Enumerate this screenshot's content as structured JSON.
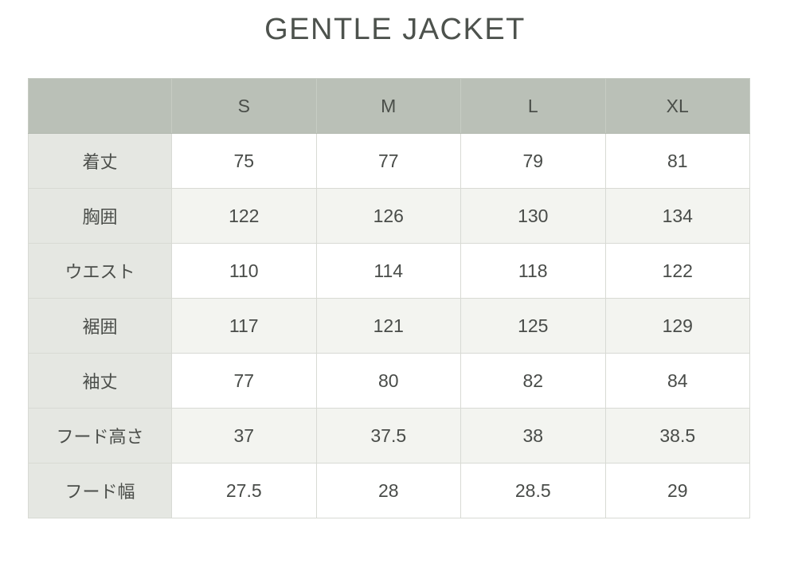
{
  "page": {
    "title": "GENTLE JACKET"
  },
  "chart_data": {
    "type": "table",
    "title": "GENTLE JACKET",
    "columns": [
      "S",
      "M",
      "L",
      "XL"
    ],
    "rows": [
      {
        "label": "着丈",
        "values": [
          "75",
          "77",
          "79",
          "81"
        ]
      },
      {
        "label": "胸囲",
        "values": [
          "122",
          "126",
          "130",
          "134"
        ]
      },
      {
        "label": "ウエスト",
        "values": [
          "110",
          "114",
          "118",
          "122"
        ]
      },
      {
        "label": "裾囲",
        "values": [
          "117",
          "121",
          "125",
          "129"
        ]
      },
      {
        "label": "袖丈",
        "values": [
          "77",
          "80",
          "82",
          "84"
        ]
      },
      {
        "label": "フード高さ",
        "values": [
          "37",
          "37.5",
          "38",
          "38.5"
        ]
      },
      {
        "label": "フード幅",
        "values": [
          "27.5",
          "28",
          "28.5",
          "29"
        ]
      }
    ],
    "layout": {
      "header_position": "top",
      "label_column_position": "left",
      "grid": true
    },
    "colors": {
      "header_bg": "#bac0b7",
      "label_column_bg": "#e5e7e2",
      "alt_row_bg": "#f3f4f0",
      "row_bg": "#ffffff",
      "border": "#d8dad4",
      "text": "#494c49",
      "title_text": "#4d524d"
    }
  }
}
